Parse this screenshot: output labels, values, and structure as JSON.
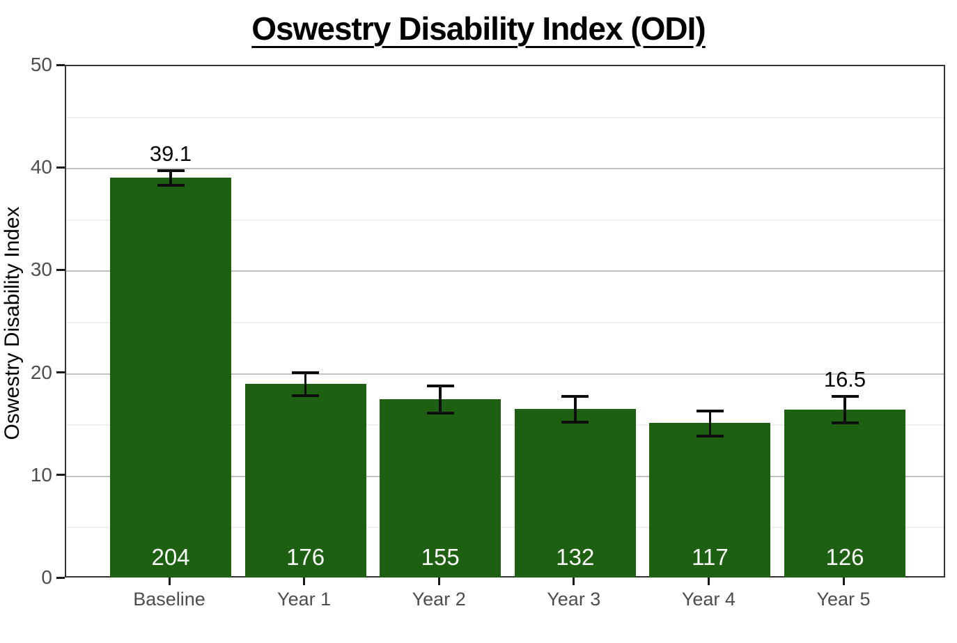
{
  "title": "Oswestry Disability Index (ODI)",
  "chart_data": {
    "type": "bar",
    "title": "Oswestry Disability Index (ODI)",
    "xlabel": "",
    "ylabel": "Oswestry Disability Index",
    "ylim": [
      0,
      50
    ],
    "yticks": [
      0,
      10,
      20,
      30,
      40,
      50
    ],
    "minor_gridlines_at": [
      5,
      15,
      25,
      35,
      45
    ],
    "grid": "horizontal",
    "legend_position": "none",
    "categories": [
      "Baseline",
      "Year 1",
      "Year 2",
      "Year 3",
      "Year 4",
      "Year 5"
    ],
    "values": [
      39.1,
      19.0,
      17.5,
      16.6,
      15.2,
      16.5
    ],
    "error_low": [
      38.4,
      17.9,
      16.2,
      15.3,
      13.9,
      15.2
    ],
    "error_high": [
      39.8,
      20.1,
      18.8,
      17.8,
      16.4,
      17.8
    ],
    "count_labels": [
      "204",
      "176",
      "155",
      "132",
      "117",
      "126"
    ],
    "value_labels": [
      "39.1",
      "",
      "",
      "",
      "",
      "16.5"
    ],
    "bar_color": "#1d6011",
    "count_label_color": "#ffffff",
    "error_bar_color": "#0d0d0d",
    "major_grid_color": "#c2c2c2",
    "minor_grid_color": "#efefef",
    "panel_border_color": "#333333",
    "tick_label_color": "#4d4d4d",
    "background_color": "#ffffff"
  }
}
